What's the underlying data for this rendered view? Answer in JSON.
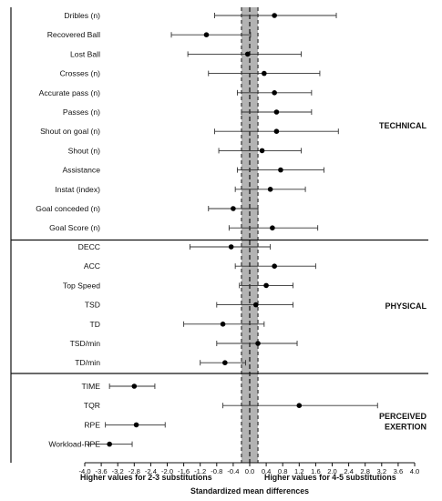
{
  "chart_data": {
    "type": "forest",
    "xlabel": "Standardized mean differences",
    "xlim": [
      -4.0,
      4.0
    ],
    "xticks": [
      "-4.0",
      "-3.6",
      "-3.2",
      "-2.8",
      "-2.4",
      "-2.0",
      "-1.6",
      "-1.2",
      "-0.8",
      "-0.4",
      "0.0",
      "0.4",
      "0.8",
      "1.2",
      "1.6",
      "2.0",
      "2.4",
      "2.8",
      "3.2",
      "3.6",
      "4.0"
    ],
    "left_caption": "Higher values for 2-3 substitutions",
    "right_caption": "Higher values for 4-5 substitutions",
    "shaded_band": [
      -0.2,
      0.2
    ],
    "reference_line": 0,
    "groups": [
      {
        "name": "TECHNICAL",
        "rows": [
          {
            "label": "Dribles (n)",
            "mean": 0.6,
            "lower": -0.85,
            "upper": 2.1
          },
          {
            "label": "Recovered Ball",
            "mean": -1.05,
            "lower": -1.9,
            "upper": 0.02
          },
          {
            "label": "Lost Ball",
            "mean": -0.05,
            "lower": -1.5,
            "upper": 1.25
          },
          {
            "label": "Crosses (n)",
            "mean": 0.35,
            "lower": -1.0,
            "upper": 1.7
          },
          {
            "label": "Accurate pass (n)",
            "mean": 0.6,
            "lower": -0.3,
            "upper": 1.5
          },
          {
            "label": "Passes (n)",
            "mean": 0.65,
            "lower": -0.2,
            "upper": 1.5
          },
          {
            "label": "Shout on goal (n)",
            "mean": 0.65,
            "lower": -0.85,
            "upper": 2.15
          },
          {
            "label": "Shout (n)",
            "mean": 0.3,
            "lower": -0.75,
            "upper": 1.25
          },
          {
            "label": "Assistance",
            "mean": 0.75,
            "lower": -0.3,
            "upper": 1.8
          },
          {
            "label": "Instat (index)",
            "mean": 0.5,
            "lower": -0.35,
            "upper": 1.35
          },
          {
            "label": "Goal conceded (n)",
            "mean": -0.4,
            "lower": -1.0,
            "upper": 0.2
          },
          {
            "label": "Goal Score (n)",
            "mean": 0.55,
            "lower": -0.5,
            "upper": 1.65
          }
        ]
      },
      {
        "name": "PHYSICAL",
        "rows": [
          {
            "label": "DECC",
            "mean": -0.45,
            "lower": -1.45,
            "upper": 0.5
          },
          {
            "label": "ACC",
            "mean": 0.6,
            "lower": -0.35,
            "upper": 1.6
          },
          {
            "label": "Top Speed",
            "mean": 0.4,
            "lower": -0.25,
            "upper": 1.05
          },
          {
            "label": "TSD",
            "mean": 0.15,
            "lower": -0.8,
            "upper": 1.05
          },
          {
            "label": "TD",
            "mean": -0.65,
            "lower": -1.6,
            "upper": 0.35
          },
          {
            "label": "TSD/min",
            "mean": 0.2,
            "lower": -0.8,
            "upper": 1.15
          },
          {
            "label": "TD/min",
            "mean": -0.6,
            "lower": -1.2,
            "upper": -0.1
          }
        ]
      },
      {
        "name": "PERCEIVED EXERTION",
        "rows": [
          {
            "label": "TIME",
            "mean": -2.8,
            "lower": -3.4,
            "upper": -2.3
          },
          {
            "label": "TQR",
            "mean": 1.2,
            "lower": -0.65,
            "upper": 3.1
          },
          {
            "label": "RPE",
            "mean": -2.75,
            "lower": -3.5,
            "upper": -2.05
          },
          {
            "label": "Workload-RPE",
            "mean": -3.4,
            "lower": -3.9,
            "upper": -2.85
          }
        ]
      }
    ]
  }
}
